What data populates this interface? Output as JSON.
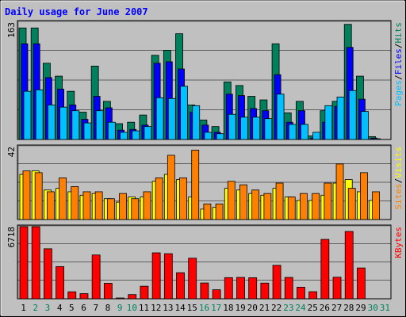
{
  "colors": {
    "background": "#c0c0c0",
    "plot_bg": "#c0c0c0",
    "title": "#0000ff",
    "axis_label": "#000000",
    "weekday_label": "#000000",
    "weekend_label": "#00805c",
    "hits": "#00805c",
    "files": "#0000ff",
    "pages": "#00c0ff",
    "visits": "#ffff00",
    "sites": "#ff8000",
    "kbytes": "#ff0000",
    "slash": "#000000"
  },
  "chart_data": [
    {
      "type": "bar",
      "title": "Daily usage for June 2007",
      "categories": [
        "1",
        "2",
        "3",
        "4",
        "5",
        "6",
        "7",
        "8",
        "9",
        "10",
        "11",
        "12",
        "13",
        "14",
        "15",
        "16",
        "17",
        "18",
        "19",
        "20",
        "21",
        "22",
        "23",
        "24",
        "25",
        "26",
        "27",
        "28",
        "29",
        "30",
        "31"
      ],
      "weekend_days": [
        "2",
        "3",
        "9",
        "10",
        "16",
        "17",
        "23",
        "24",
        "30",
        "31"
      ],
      "ymax_label": "163",
      "ylim": [
        0,
        163
      ],
      "legend": [
        "Hits",
        "Files",
        "Pages"
      ],
      "series": [
        {
          "name": "Hits",
          "values": [
            155,
            155,
            106,
            88,
            67,
            38,
            102,
            53,
            22,
            24,
            34,
            117,
            124,
            147,
            48,
            27,
            18,
            80,
            75,
            60,
            55,
            133,
            37,
            53,
            5,
            40,
            53,
            160,
            88,
            4,
            0
          ]
        },
        {
          "name": "Files",
          "values": [
            133,
            133,
            86,
            70,
            48,
            28,
            60,
            44,
            13,
            14,
            20,
            106,
            108,
            98,
            38,
            20,
            10,
            63,
            61,
            43,
            40,
            90,
            24,
            40,
            2,
            24,
            46,
            128,
            56,
            2,
            0
          ]
        },
        {
          "name": "Pages",
          "values": [
            67,
            69,
            48,
            45,
            40,
            23,
            40,
            24,
            10,
            12,
            18,
            58,
            57,
            74,
            47,
            10,
            8,
            35,
            31,
            31,
            29,
            63,
            21,
            21,
            10,
            47,
            59,
            68,
            39,
            1,
            0
          ]
        }
      ]
    },
    {
      "type": "bar",
      "ymax_label": "42",
      "ylim": [
        0,
        42
      ],
      "legend": [
        "Visits",
        "Sites"
      ],
      "series": [
        {
          "name": "Visits",
          "values": [
            26,
            28,
            17,
            18,
            16,
            14,
            15,
            12,
            10,
            13,
            13,
            22,
            26,
            23,
            13,
            6,
            7,
            18,
            17,
            15,
            14,
            18,
            13,
            11,
            11,
            14,
            21,
            23,
            16,
            11,
            0
          ]
        },
        {
          "name": "Sites",
          "values": [
            28,
            27,
            16,
            24,
            19,
            16,
            16,
            12,
            15,
            12,
            16,
            24,
            37,
            24,
            40,
            9,
            9,
            22,
            20,
            17,
            15,
            21,
            13,
            15,
            15,
            21,
            32,
            18,
            27,
            16,
            0
          ]
        }
      ]
    },
    {
      "type": "bar",
      "ymax_label": "6718",
      "ylim": [
        0,
        6718
      ],
      "legend": [
        "KBytes"
      ],
      "series": [
        {
          "name": "KBytes",
          "values": [
            6718,
            6718,
            4660,
            3000,
            650,
            480,
            4080,
            1440,
            40,
            390,
            1170,
            4280,
            4200,
            2430,
            3780,
            1470,
            840,
            1970,
            1990,
            1960,
            1460,
            3120,
            1990,
            1080,
            660,
            5530,
            2010,
            6270,
            2870,
            0,
            0
          ]
        }
      ]
    }
  ]
}
